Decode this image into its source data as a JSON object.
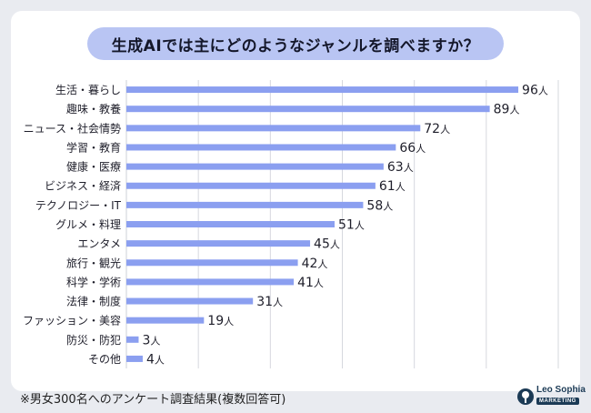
{
  "title": "生成AIでは主にどのようなジャンルを調べますか？",
  "footnote": "※男女300名へのアンケート調査結果(複数回答可)",
  "logo": {
    "line1": "Leo Sophia",
    "line2": "MARKETING"
  },
  "colors": {
    "bar": "#8b9ff0",
    "title_bg": "#b9c5f3",
    "grid": "#d6d8de"
  },
  "chart_data": {
    "type": "bar",
    "orientation": "horizontal",
    "categories": [
      "生活・暮らし",
      "趣味・教養",
      "ニュース・社会情勢",
      "学習・教育",
      "健康・医療",
      "ビジネス・経済",
      "テクノロジー・IT",
      "グルメ・料理",
      "エンタメ",
      "旅行・観光",
      "科学・学術",
      "法律・制度",
      "ファッション・美容",
      "防災・防犯",
      "その他"
    ],
    "values": [
      96,
      89,
      72,
      66,
      63,
      61,
      58,
      51,
      45,
      42,
      41,
      31,
      19,
      3,
      4
    ],
    "unit": "人",
    "xlim": [
      0,
      100
    ],
    "grid": true
  }
}
